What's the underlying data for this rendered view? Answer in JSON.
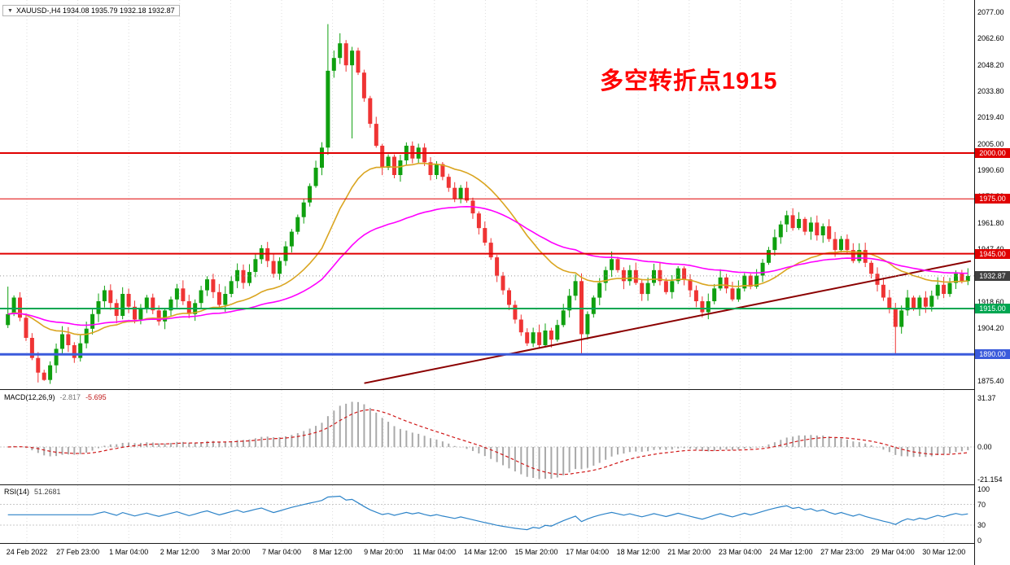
{
  "window": {
    "title": "XAUUSD-,H4 1934.08 1935.79 1932.18 1932.87"
  },
  "icons": {
    "dropdown": "▼"
  },
  "annotation": {
    "text": "多空转折点1915",
    "color": "#FF0000"
  },
  "colors": {
    "up_candle": "#0FA00F",
    "down_candle": "#EF3434",
    "ma_fast": "#DAA520",
    "ma_slow": "#FF00FF",
    "trendline": "#8B0000",
    "macd_histogram": "#A9A9A9",
    "macd_signal": "#D01818",
    "rsi_line": "#2C83C8",
    "current_price_tag": "#404040",
    "grid": "#DCDCDC",
    "level_red": "#E00000",
    "level_green": "#00A651",
    "level_blue": "#3B5BDB"
  },
  "chart_data": {
    "type": "candlestick",
    "symbol": "XAUUSD-",
    "timeframe": "H4",
    "quote": {
      "open": 1934.08,
      "high": 1935.79,
      "low": 1932.18,
      "close": 1932.87
    },
    "price_top": 2077.0,
    "price_bottom": 1875.4,
    "y_axis_labels": [
      "2077.00",
      "2062.60",
      "2048.20",
      "2033.80",
      "2019.40",
      "2005.00",
      "1990.60",
      "1976.20",
      "1961.80",
      "1947.40",
      "1933.00",
      "1918.60",
      "1904.20",
      "1889.80",
      "1875.40"
    ],
    "x_axis_labels": [
      "24 Feb 2022",
      "27 Feb 23:00",
      "1 Mar 04:00",
      "2 Mar 12:00",
      "3 Mar 20:00",
      "7 Mar 04:00",
      "8 Mar 12:00",
      "9 Mar 20:00",
      "11 Mar 04:00",
      "14 Mar 12:00",
      "15 Mar 20:00",
      "17 Mar 04:00",
      "18 Mar 12:00",
      "21 Mar 20:00",
      "23 Mar 04:00",
      "24 Mar 12:00",
      "27 Mar 23:00",
      "29 Mar 04:00",
      "30 Mar 12:00"
    ],
    "first_open": 1906,
    "closes": [
      1912,
      1921,
      1910,
      1899,
      1888,
      1880,
      1876,
      1884,
      1893,
      1901,
      1895,
      1888,
      1896,
      1904,
      1912,
      1919,
      1925,
      1918,
      1911,
      1923,
      1916,
      1909,
      1915,
      1921,
      1914,
      1908,
      1914,
      1920,
      1926,
      1919,
      1912,
      1918,
      1925,
      1931,
      1924,
      1917,
      1923,
      1930,
      1936,
      1929,
      1935,
      1942,
      1948,
      1941,
      1934,
      1941,
      1949,
      1957,
      1965,
      1973,
      1982,
      1992,
      2003,
      2045,
      2052,
      2060,
      2048,
      2056,
      2044,
      2030,
      2016,
      2004,
      1992,
      1998,
      1988,
      1996,
      2004,
      1997,
      2003,
      1995,
      1988,
      1994,
      1987,
      1981,
      1975,
      1981,
      1974,
      1967,
      1959,
      1951,
      1943,
      1933,
      1925,
      1917,
      1909,
      1902,
      1896,
      1902,
      1895,
      1903,
      1898,
      1906,
      1914,
      1922,
      1930,
      1901,
      1912,
      1921,
      1929,
      1936,
      1942,
      1936,
      1930,
      1936,
      1929,
      1923,
      1929,
      1936,
      1930,
      1924,
      1930,
      1937,
      1931,
      1925,
      1919,
      1913,
      1919,
      1926,
      1932,
      1926,
      1920,
      1926,
      1933,
      1927,
      1933,
      1940,
      1947,
      1954,
      1961,
      1966,
      1959,
      1964,
      1957,
      1962,
      1955,
      1960,
      1953,
      1947,
      1953,
      1947,
      1941,
      1947,
      1940,
      1934,
      1928,
      1921,
      1915,
      1905,
      1914,
      1921,
      1915,
      1921,
      1916,
      1922,
      1928,
      1923,
      1929,
      1934,
      1930,
      1932.87
    ],
    "wick_overrides": {
      "0": {
        "high": 1927
      },
      "5": {
        "low": 1874.6
      },
      "6": {
        "low": 1875.5
      },
      "53": {
        "high": 2070.5,
        "low": 1999
      },
      "55": {
        "high": 2065.5
      },
      "57": {
        "low": 2008
      },
      "95": {
        "low": 1890.5
      },
      "147": {
        "low": 1890.2
      }
    },
    "hlines": [
      {
        "price": 2000.0,
        "label": "2000.00",
        "color": "#E00000",
        "width": 2
      },
      {
        "price": 1975.0,
        "label": "1975.00",
        "color": "#E00000",
        "width": 1
      },
      {
        "price": 1945.0,
        "label": "1945.00",
        "color": "#E00000",
        "width": 2
      },
      {
        "price": 1915.0,
        "label": "1915.00",
        "color": "#00A651",
        "width": 2
      },
      {
        "price": 1890.0,
        "label": "1890.00",
        "color": "#3B5BDB",
        "width": 3
      }
    ],
    "trendline": {
      "x1_frac": 0.372,
      "price1": 1874.2,
      "x2_frac": 1.0,
      "price2": 1941.0
    },
    "current_price": 1932.87,
    "current_price_label": "1932.87",
    "indicators": {
      "macd": {
        "label": "MACD(12,26,9)",
        "value_main": "-2.817",
        "value_signal": "-5.695",
        "scale": [
          {
            "v": 31.37,
            "text": "31.37"
          },
          {
            "v": 0,
            "text": "0.00"
          },
          {
            "v": -21.154,
            "text": "-21.154"
          }
        ]
      },
      "rsi": {
        "label": "RSI(14)",
        "value": "51.2681",
        "scale": [
          {
            "v": 100,
            "text": "100"
          },
          {
            "v": 70,
            "text": "70"
          },
          {
            "v": 30,
            "text": "30"
          },
          {
            "v": 0,
            "text": "0"
          }
        ],
        "levels": [
          70,
          30
        ]
      }
    }
  }
}
